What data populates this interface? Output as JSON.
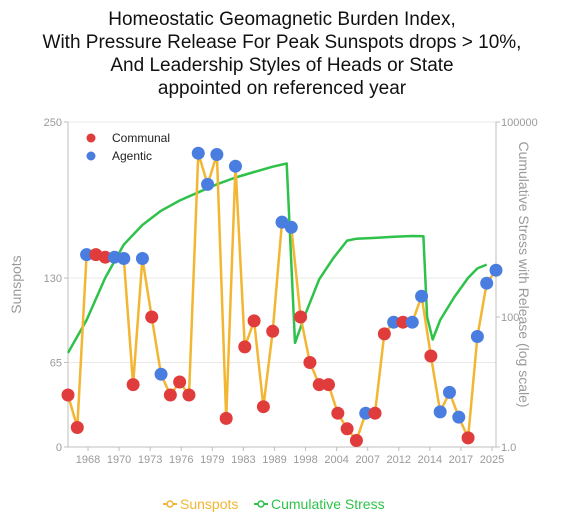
{
  "chart_data": {
    "type": "line",
    "title_lines": [
      "Homeostatic Geomagnetic Burden  Index,",
      "With Pressure Release For Peak Sunspots drops > 10%,",
      "And Leadership Styles of Heads or State",
      "appointed on referenced year"
    ],
    "ylabel_left": "Sunspots",
    "ylabel_right": "Cumulative Stress with Release (log scale)",
    "y_left_ticks": [
      "0",
      "65",
      "130",
      "250"
    ],
    "y_left_ticks_values": [
      0,
      65,
      130,
      250
    ],
    "y_right_ticks": [
      "1.0",
      "100",
      "100000"
    ],
    "y_right_ticks_values": [
      1,
      100,
      100000
    ],
    "x_ticks": [
      "1968",
      "1970",
      "1973",
      "1976",
      "1979",
      "1983",
      "1989",
      "1998",
      "2004",
      "2007",
      "2012",
      "2014",
      "2017",
      "2025"
    ],
    "legend_top": [
      {
        "name": "Communal",
        "color": "#e03c3c"
      },
      {
        "name": "Agentic",
        "color": "#4a7de0"
      }
    ],
    "legend_bottom": [
      {
        "name": "Sunspots",
        "color": "#f2b632"
      },
      {
        "name": "Cumulative Stress",
        "color": "#2ec24a"
      }
    ],
    "sunspot_points": [
      {
        "i": 0,
        "v": 40,
        "style": "Communal"
      },
      {
        "i": 1,
        "v": 15,
        "style": "Communal"
      },
      {
        "i": 2,
        "v": 148,
        "style": "Agentic"
      },
      {
        "i": 3,
        "v": 148,
        "style": "Communal"
      },
      {
        "i": 4,
        "v": 146,
        "style": "Communal"
      },
      {
        "i": 5,
        "v": 146,
        "style": "Agentic"
      },
      {
        "i": 6,
        "v": 145,
        "style": "Agentic"
      },
      {
        "i": 7,
        "v": 48,
        "style": "Communal"
      },
      {
        "i": 8,
        "v": 145,
        "style": "Agentic"
      },
      {
        "i": 9,
        "v": 100,
        "style": "Communal"
      },
      {
        "i": 10,
        "v": 56,
        "style": "Agentic"
      },
      {
        "i": 11,
        "v": 40,
        "style": "Communal"
      },
      {
        "i": 12,
        "v": 50,
        "style": "Communal"
      },
      {
        "i": 13,
        "v": 40,
        "style": "Communal"
      },
      {
        "i": 14,
        "v": 226,
        "style": "Agentic"
      },
      {
        "i": 15,
        "v": 202,
        "style": "Agentic"
      },
      {
        "i": 16,
        "v": 225,
        "style": "Agentic"
      },
      {
        "i": 17,
        "v": 22,
        "style": "Communal"
      },
      {
        "i": 18,
        "v": 216,
        "style": "Agentic"
      },
      {
        "i": 19,
        "v": 77,
        "style": "Communal"
      },
      {
        "i": 20,
        "v": 97,
        "style": "Communal"
      },
      {
        "i": 21,
        "v": 31,
        "style": "Communal"
      },
      {
        "i": 22,
        "v": 89,
        "style": "Communal"
      },
      {
        "i": 23,
        "v": 173,
        "style": "Agentic"
      },
      {
        "i": 24,
        "v": 169,
        "style": "Agentic"
      },
      {
        "i": 25,
        "v": 100,
        "style": "Communal"
      },
      {
        "i": 26,
        "v": 65,
        "style": "Communal"
      },
      {
        "i": 27,
        "v": 48,
        "style": "Communal"
      },
      {
        "i": 28,
        "v": 48,
        "style": "Communal"
      },
      {
        "i": 29,
        "v": 26,
        "style": "Communal"
      },
      {
        "i": 30,
        "v": 14,
        "style": "Communal"
      },
      {
        "i": 31,
        "v": 5,
        "style": "Communal"
      },
      {
        "i": 32,
        "v": 26,
        "style": "Agentic"
      },
      {
        "i": 33,
        "v": 26,
        "style": "Communal"
      },
      {
        "i": 34,
        "v": 87,
        "style": "Communal"
      },
      {
        "i": 35,
        "v": 96,
        "style": "Agentic"
      },
      {
        "i": 36,
        "v": 96,
        "style": "Communal"
      },
      {
        "i": 37,
        "v": 96,
        "style": "Agentic"
      },
      {
        "i": 38,
        "v": 116,
        "style": "Agentic"
      },
      {
        "i": 39,
        "v": 70,
        "style": "Communal"
      },
      {
        "i": 40,
        "v": 27,
        "style": "Agentic"
      },
      {
        "i": 41,
        "v": 42,
        "style": "Agentic"
      },
      {
        "i": 42,
        "v": 23,
        "style": "Agentic"
      },
      {
        "i": 43,
        "v": 7,
        "style": "Communal"
      },
      {
        "i": 44,
        "v": 85,
        "style": "Agentic"
      },
      {
        "i": 45,
        "v": 126,
        "style": "Agentic"
      },
      {
        "i": 46,
        "v": 136,
        "style": "Agentic"
      }
    ],
    "cumulative_stress_points": [
      {
        "i": 0,
        "v": 28
      },
      {
        "i": 2,
        "v": 90
      },
      {
        "i": 4,
        "v": 400
      },
      {
        "i": 6,
        "v": 1300
      },
      {
        "i": 8,
        "v": 2600
      },
      {
        "i": 10,
        "v": 4300
      },
      {
        "i": 12,
        "v": 6200
      },
      {
        "i": 14,
        "v": 8300
      },
      {
        "i": 16,
        "v": 11000
      },
      {
        "i": 18,
        "v": 14000
      },
      {
        "i": 20,
        "v": 17000
      },
      {
        "i": 22,
        "v": 20500
      },
      {
        "i": 23.5,
        "v": 23000
      },
      {
        "i": 24.4,
        "v": 40
      },
      {
        "i": 25.5,
        "v": 110
      },
      {
        "i": 27,
        "v": 380
      },
      {
        "i": 28.5,
        "v": 800
      },
      {
        "i": 30,
        "v": 1500
      },
      {
        "i": 31,
        "v": 1600
      },
      {
        "i": 33,
        "v": 1650
      },
      {
        "i": 35,
        "v": 1720
      },
      {
        "i": 37,
        "v": 1760
      },
      {
        "i": 38.2,
        "v": 1750
      },
      {
        "i": 38.6,
        "v": 100
      },
      {
        "i": 39.2,
        "v": 45
      },
      {
        "i": 40,
        "v": 90
      },
      {
        "i": 41.5,
        "v": 200
      },
      {
        "i": 43,
        "v": 400
      },
      {
        "i": 44,
        "v": 560
      },
      {
        "i": 45,
        "v": 640
      }
    ]
  }
}
